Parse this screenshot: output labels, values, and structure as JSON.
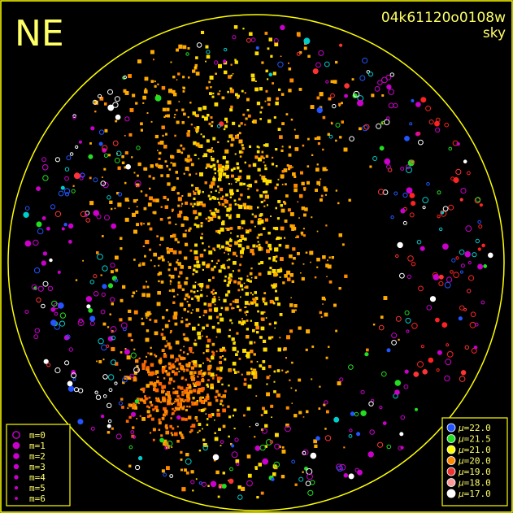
{
  "header": {
    "direction_label": "NE",
    "image_id": "04k61120o0108w",
    "image_type": "sky"
  },
  "colors": {
    "frame": "#ffff00",
    "text": "#ffff66",
    "magnitude_marker": "#cc00cc"
  },
  "magnitude_legend": {
    "items": [
      {
        "label": "m=0"
      },
      {
        "label": "m=1"
      },
      {
        "label": "m=2"
      },
      {
        "label": "m=3"
      },
      {
        "label": "m=4"
      },
      {
        "label": "m=5"
      },
      {
        "label": "m=6"
      }
    ]
  },
  "brightness_legend": {
    "symbol": "μ",
    "items": [
      {
        "value": "=22.0",
        "color": "#2255ff"
      },
      {
        "value": "=21.5",
        "color": "#22dd22"
      },
      {
        "value": "=21.0",
        "color": "#ffff00"
      },
      {
        "value": "=20.0",
        "color": "#ff8800"
      },
      {
        "value": "=19.0",
        "color": "#ee3333"
      },
      {
        "value": "=18.0",
        "color": "#ff9999"
      },
      {
        "value": "=17.0",
        "color": "#ffffff"
      }
    ]
  }
}
